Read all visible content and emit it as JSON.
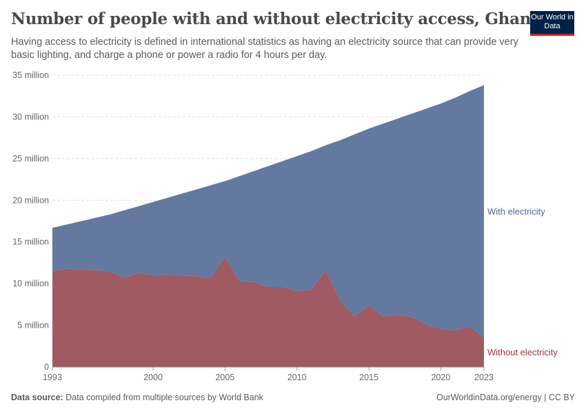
{
  "header": {
    "title": "Number of people with and without electricity access, Ghana",
    "subtitle": "Having access to electricity is defined in international statistics as having an electricity source that can provide very basic lighting, and charge a phone or power a radio for 4 hours per day.",
    "logo_text": "Our World in Data"
  },
  "footer": {
    "source_label": "Data source:",
    "source_text": "Data compiled from multiple sources by World Bank",
    "credit": "OurWorldinData.org/energy | CC BY"
  },
  "chart_data": {
    "type": "area",
    "stacked": true,
    "title": "Number of people with and without electricity access, Ghana",
    "xlim": [
      1993,
      2023
    ],
    "ylim": [
      0,
      35000000
    ],
    "grid": "horizontal dashed",
    "x_ticks": [
      "1993",
      "2000",
      "2005",
      "2010",
      "2015",
      "2020",
      "2023"
    ],
    "y_ticks": [
      "0",
      "5 million",
      "10 million",
      "15 million",
      "20 million",
      "25 million",
      "30 million",
      "35 million"
    ],
    "legend_placement": "right, inline labels",
    "x": [
      1993,
      1994,
      1995,
      1996,
      1997,
      1998,
      1999,
      2000,
      2001,
      2002,
      2003,
      2004,
      2005,
      2006,
      2007,
      2008,
      2009,
      2010,
      2011,
      2012,
      2013,
      2014,
      2015,
      2016,
      2017,
      2018,
      2019,
      2020,
      2021,
      2022,
      2023
    ],
    "series": [
      {
        "name": "Without electricity",
        "color": "#a05a62",
        "label_color": "#a2323d",
        "values_million": [
          11.5,
          11.8,
          11.7,
          11.6,
          11.5,
          10.7,
          11.3,
          11.0,
          11.1,
          11.0,
          10.9,
          10.7,
          13.2,
          10.3,
          10.2,
          9.6,
          9.6,
          9.1,
          9.3,
          11.6,
          8.0,
          6.1,
          7.4,
          6.1,
          6.3,
          6.0,
          5.1,
          4.6,
          4.4,
          4.9,
          3.5
        ]
      },
      {
        "name": "With electricity",
        "color": "#6379a0",
        "label_color": "#4c6a9c",
        "values_million": [
          5.2,
          5.3,
          5.8,
          6.3,
          6.8,
          8.1,
          8.0,
          8.8,
          9.2,
          9.8,
          10.4,
          11.1,
          9.1,
          12.6,
          13.3,
          14.5,
          15.1,
          16.2,
          16.6,
          15.0,
          19.2,
          21.8,
          21.2,
          23.1,
          23.5,
          24.4,
          25.9,
          27.0,
          27.9,
          28.2,
          30.3
        ]
      }
    ]
  }
}
